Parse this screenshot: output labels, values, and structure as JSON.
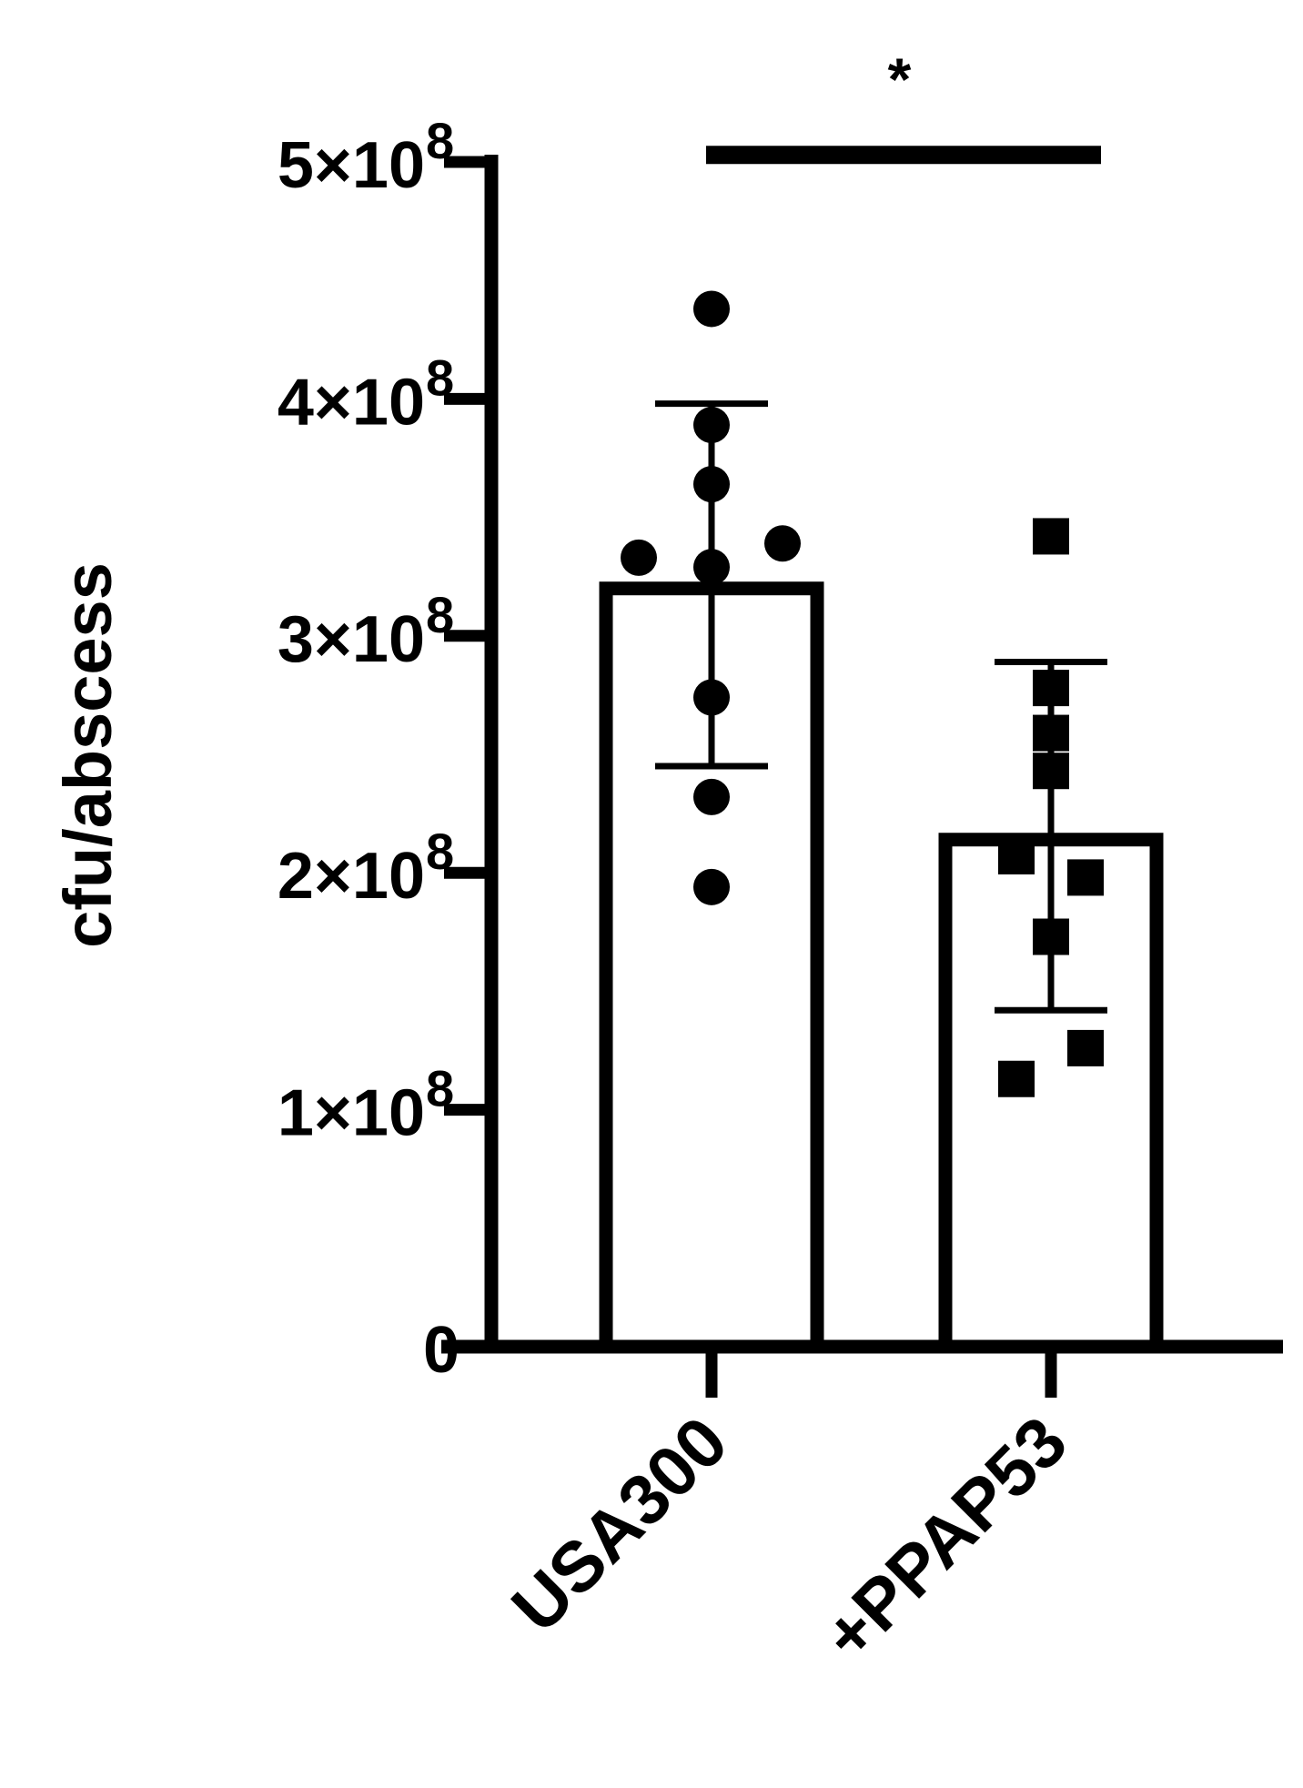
{
  "chart_data": {
    "type": "bar",
    "title": "",
    "xlabel": "",
    "ylabel": "cfu/abscess",
    "ylim": [
      0,
      500000000
    ],
    "yticks": [
      {
        "value": 0,
        "mantissa": "0",
        "exponent": ""
      },
      {
        "value": 100000000,
        "mantissa": "1×10",
        "exponent": "8"
      },
      {
        "value": 200000000,
        "mantissa": "2×10",
        "exponent": "8"
      },
      {
        "value": 300000000,
        "mantissa": "3×10",
        "exponent": "8"
      },
      {
        "value": 400000000,
        "mantissa": "4×10",
        "exponent": "8"
      },
      {
        "value": 500000000,
        "mantissa": "5×10",
        "exponent": "8"
      }
    ],
    "categories": [
      "USA300",
      "+PPAP53"
    ],
    "values": [
      320000000,
      214000000
    ],
    "error_bars": [
      {
        "low": 245000000,
        "high": 398000000
      },
      {
        "low": 142000000,
        "high": 289000000
      }
    ],
    "points": [
      {
        "category": "USA300",
        "marker": "circle",
        "values": [
          438000000,
          389000000,
          364000000,
          333000000,
          339000000,
          329000000,
          274000000,
          232000000,
          194000000
        ]
      },
      {
        "category": "+PPAP53",
        "marker": "square",
        "values": [
          342000000,
          278000000,
          259000000,
          243000000,
          207000000,
          198000000,
          173000000,
          126000000,
          113000000
        ]
      }
    ],
    "significance": {
      "from": "USA300",
      "to": "+PPAP53",
      "label": "*",
      "value": 503000000
    },
    "grid": false,
    "legend": "none",
    "colors": {
      "bar_fill": "#ffffff",
      "stroke": "#000000",
      "marker": "#000000"
    }
  }
}
